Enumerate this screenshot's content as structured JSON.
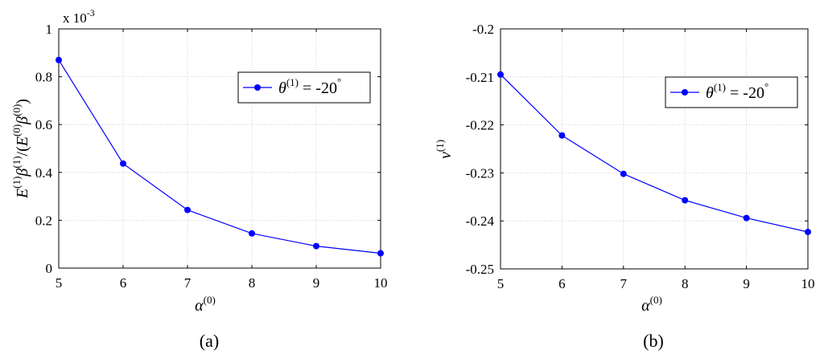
{
  "chart_data": [
    {
      "type": "line",
      "caption": "(a)",
      "exponent": "x 10",
      "exponent_power": "-3",
      "ylabel": "E(1)β(1)/(E(0)β(0))",
      "ylabel_parts": {
        "a": "E",
        "a_sup": "(1)",
        "b": "β",
        "b_sup": "(1)",
        "c": "/(",
        "d": "E",
        "d_sup": "(0)",
        "e": "β",
        "e_sup": "(0)",
        "f": ")"
      },
      "xlabel": "α(0)",
      "xlabel_parts": {
        "base": "α",
        "sup": "(0)"
      },
      "xlim": [
        5,
        10
      ],
      "ylim": [
        0,
        1
      ],
      "grid": true,
      "legend_position": "top-right",
      "x_ticks": [
        "5",
        "6",
        "7",
        "8",
        "9",
        "10"
      ],
      "y_ticks": [
        "0",
        "0.2",
        "0.4",
        "0.6",
        "0.8",
        "1"
      ],
      "series": [
        {
          "name": "θ(1) = -20°",
          "name_parts": {
            "sym": "θ",
            "sup": "(1)",
            "rest": " = -20",
            "deg": "°"
          },
          "color": "#0000ff",
          "x": [
            5,
            6,
            7,
            8,
            9,
            10
          ],
          "y": [
            0.87,
            0.437,
            0.243,
            0.145,
            0.092,
            0.062
          ]
        }
      ]
    },
    {
      "type": "line",
      "caption": "(b)",
      "ylabel": "ν(1)",
      "ylabel_parts": {
        "base": "ν",
        "sup": "(1)"
      },
      "xlabel": "α(0)",
      "xlabel_parts": {
        "base": "α",
        "sup": "(0)"
      },
      "xlim": [
        5,
        10
      ],
      "ylim": [
        -0.25,
        -0.2
      ],
      "grid": true,
      "legend_position": "top-right",
      "x_ticks": [
        "5",
        "6",
        "7",
        "8",
        "9",
        "10"
      ],
      "y_ticks": [
        "-0.25",
        "-0.24",
        "-0.23",
        "-0.22",
        "-0.21",
        "-0.2"
      ],
      "series": [
        {
          "name": "θ(1) = -20°",
          "name_parts": {
            "sym": "θ",
            "sup": "(1)",
            "rest": " = -20",
            "deg": "°"
          },
          "color": "#0000ff",
          "x": [
            5,
            6,
            7,
            8,
            9,
            10
          ],
          "y": [
            -0.2095,
            -0.2222,
            -0.2302,
            -0.2357,
            -0.2394,
            -0.2423
          ]
        }
      ]
    }
  ]
}
